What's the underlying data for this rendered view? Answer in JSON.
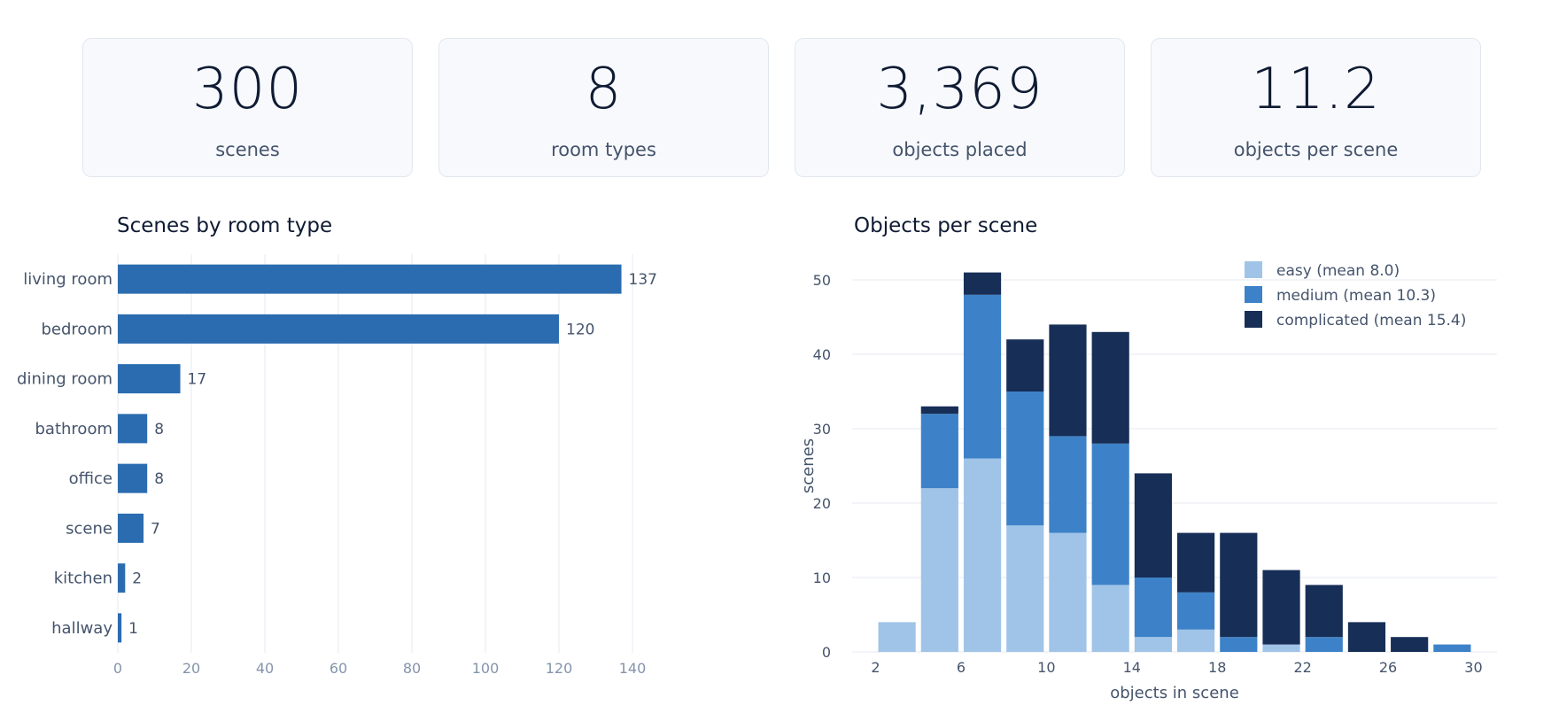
{
  "stats": [
    {
      "value": "300",
      "label": "scenes"
    },
    {
      "value": "8",
      "label": "room types"
    },
    {
      "value": "3,369",
      "label": "objects placed"
    },
    {
      "value": "11.2",
      "label": "objects per scene"
    }
  ],
  "colors": {
    "bar": "#2b6cb0",
    "easy": "#a0c4e8",
    "medium": "#3d82c8",
    "complicated": "#172e57",
    "grid": "#e5e9f0",
    "tick": "#8494ab",
    "label": "#45546c"
  },
  "chart_data": [
    {
      "type": "bar",
      "orientation": "horizontal",
      "title": "Scenes by room type",
      "categories": [
        "living room",
        "bedroom",
        "dining room",
        "bathroom",
        "office",
        "scene",
        "kitchen",
        "hallway"
      ],
      "values": [
        137,
        120,
        17,
        8,
        8,
        7,
        2,
        1
      ],
      "xlim": [
        0,
        140
      ],
      "xticks": [
        0,
        20,
        40,
        60,
        80,
        100,
        120,
        140
      ],
      "grid": true
    },
    {
      "type": "bar",
      "stacked": true,
      "title": "Objects per scene",
      "xlabel": "objects in scene",
      "ylabel": "scenes",
      "x": [
        2,
        4,
        6,
        8,
        10,
        12,
        14,
        16,
        18,
        20,
        22,
        24,
        26,
        28
      ],
      "xticks": [
        2,
        6,
        10,
        14,
        18,
        22,
        26,
        30
      ],
      "ylim": [
        0,
        50
      ],
      "yticks": [
        0,
        10,
        20,
        30,
        40,
        50
      ],
      "legend": "top-right",
      "series": [
        {
          "name": "easy  (mean 8.0)",
          "key": "easy",
          "values": [
            4,
            22,
            26,
            17,
            16,
            9,
            2,
            3,
            0,
            1,
            0,
            0,
            0,
            0
          ]
        },
        {
          "name": "medium  (mean 10.3)",
          "key": "medium",
          "values": [
            0,
            10,
            22,
            18,
            13,
            19,
            8,
            5,
            2,
            0,
            2,
            0,
            0,
            1
          ]
        },
        {
          "name": "complicated  (mean 15.4)",
          "key": "complicated",
          "values": [
            0,
            1,
            3,
            7,
            15,
            15,
            14,
            8,
            14,
            10,
            7,
            4,
            2,
            0
          ]
        }
      ]
    }
  ]
}
